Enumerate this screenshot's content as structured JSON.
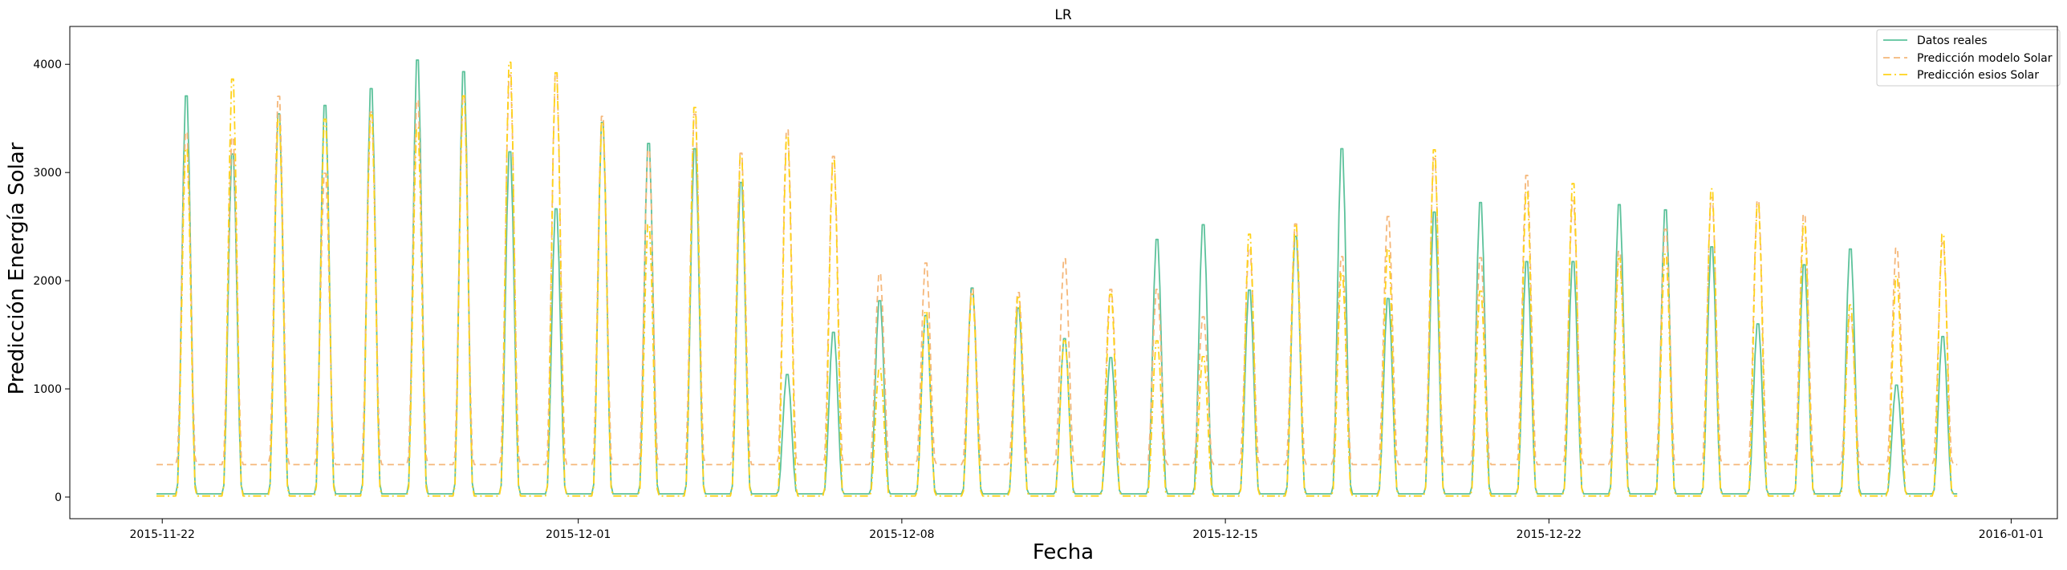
{
  "chart_data": {
    "type": "line",
    "title": "LR",
    "xlabel": "Fecha",
    "ylabel": "Predicción Energía Solar",
    "xlim": [
      "2015-11-20",
      "2016-01-02"
    ],
    "ylim": [
      -200,
      4350
    ],
    "x_tick_labels": [
      "2015-11-22",
      "2015-12-01",
      "2015-12-08",
      "2015-12-15",
      "2015-12-22",
      "2016-01-01"
    ],
    "y_tick_labels": [
      "0",
      "1000",
      "2000",
      "3000",
      "4000"
    ],
    "legend_position": "top-right",
    "grid": false,
    "series": [
      {
        "name": "Datos reales",
        "color": "#5cc29b",
        "style": "solid",
        "daily_peaks": [
          {
            "date": "2015-11-22",
            "peak": 3800
          },
          {
            "date": "2015-11-23",
            "peak": 3250
          },
          {
            "date": "2015-11-24",
            "peak": 3630
          },
          {
            "date": "2015-11-25",
            "peak": 3710
          },
          {
            "date": "2015-11-26",
            "peak": 3870
          },
          {
            "date": "2015-11-27",
            "peak": 4140
          },
          {
            "date": "2015-11-28",
            "peak": 4030
          },
          {
            "date": "2015-11-29",
            "peak": 3270
          },
          {
            "date": "2015-11-30",
            "peak": 2730
          },
          {
            "date": "2015-12-01",
            "peak": 3550
          },
          {
            "date": "2015-12-02",
            "peak": 3350
          },
          {
            "date": "2015-12-03",
            "peak": 3300
          },
          {
            "date": "2015-12-04",
            "peak": 2980
          },
          {
            "date": "2015-12-05",
            "peak": 1160
          },
          {
            "date": "2015-12-06",
            "peak": 1560
          },
          {
            "date": "2015-12-07",
            "peak": 1860
          },
          {
            "date": "2015-12-08",
            "peak": 1720
          },
          {
            "date": "2015-12-09",
            "peak": 1980
          },
          {
            "date": "2015-12-10",
            "peak": 1790
          },
          {
            "date": "2015-12-11",
            "peak": 1500
          },
          {
            "date": "2015-12-12",
            "peak": 1320
          },
          {
            "date": "2015-12-13",
            "peak": 2440
          },
          {
            "date": "2015-12-14",
            "peak": 2580
          },
          {
            "date": "2015-12-15",
            "peak": 1960
          },
          {
            "date": "2015-12-16",
            "peak": 2470
          },
          {
            "date": "2015-12-17",
            "peak": 3300
          },
          {
            "date": "2015-12-18",
            "peak": 1880
          },
          {
            "date": "2015-12-19",
            "peak": 2700
          },
          {
            "date": "2015-12-20",
            "peak": 2790
          },
          {
            "date": "2015-12-21",
            "peak": 2230
          },
          {
            "date": "2015-12-22",
            "peak": 2230
          },
          {
            "date": "2015-12-23",
            "peak": 2770
          },
          {
            "date": "2015-12-24",
            "peak": 2720
          },
          {
            "date": "2015-12-25",
            "peak": 2370
          },
          {
            "date": "2015-12-26",
            "peak": 1640
          },
          {
            "date": "2015-12-27",
            "peak": 2200
          },
          {
            "date": "2015-12-28",
            "peak": 2350
          },
          {
            "date": "2015-12-29",
            "peak": 1060
          },
          {
            "date": "2015-12-30",
            "peak": 1520
          }
        ],
        "night_level": 30
      },
      {
        "name": "Predicción modelo Solar",
        "color": "#f5b77a",
        "style": "dashed",
        "daily_peaks": [
          {
            "date": "2015-11-22",
            "peak": 3450
          },
          {
            "date": "2015-11-23",
            "peak": 3400
          },
          {
            "date": "2015-11-24",
            "peak": 3790
          },
          {
            "date": "2015-11-25",
            "peak": 3060
          },
          {
            "date": "2015-11-26",
            "peak": 3640
          },
          {
            "date": "2015-11-27",
            "peak": 3750
          },
          {
            "date": "2015-11-28",
            "peak": 3800
          },
          {
            "date": "2015-11-29",
            "peak": 3990
          },
          {
            "date": "2015-11-30",
            "peak": 4010
          },
          {
            "date": "2015-12-01",
            "peak": 3600
          },
          {
            "date": "2015-12-02",
            "peak": 3280
          },
          {
            "date": "2015-12-03",
            "peak": 3620
          },
          {
            "date": "2015-12-04",
            "peak": 3250
          },
          {
            "date": "2015-12-05",
            "peak": 3470
          },
          {
            "date": "2015-12-06",
            "peak": 3220
          },
          {
            "date": "2015-12-07",
            "peak": 2110
          },
          {
            "date": "2015-12-08",
            "peak": 2210
          },
          {
            "date": "2015-12-09",
            "peak": 1960
          },
          {
            "date": "2015-12-10",
            "peak": 1930
          },
          {
            "date": "2015-12-11",
            "peak": 2250
          },
          {
            "date": "2015-12-12",
            "peak": 1960
          },
          {
            "date": "2015-12-13",
            "peak": 1960
          },
          {
            "date": "2015-12-14",
            "peak": 1700
          },
          {
            "date": "2015-12-15",
            "peak": 2350
          },
          {
            "date": "2015-12-16",
            "peak": 2580
          },
          {
            "date": "2015-12-17",
            "peak": 2270
          },
          {
            "date": "2015-12-18",
            "peak": 2650
          },
          {
            "date": "2015-12-19",
            "peak": 3200
          },
          {
            "date": "2015-12-20",
            "peak": 2260
          },
          {
            "date": "2015-12-21",
            "peak": 3040
          },
          {
            "date": "2015-12-22",
            "peak": 2800
          },
          {
            "date": "2015-12-23",
            "peak": 2320
          },
          {
            "date": "2015-12-24",
            "peak": 2530
          },
          {
            "date": "2015-12-25",
            "peak": 2830
          },
          {
            "date": "2015-12-26",
            "peak": 2800
          },
          {
            "date": "2015-12-27",
            "peak": 2670
          },
          {
            "date": "2015-12-28",
            "peak": 1720
          },
          {
            "date": "2015-12-29",
            "peak": 2350
          },
          {
            "date": "2015-12-30",
            "peak": 2400
          }
        ],
        "night_level": 300
      },
      {
        "name": "Predicción esios Solar",
        "color": "#ffd21a",
        "style": "dashdot",
        "daily_peaks": [
          {
            "date": "2015-11-22",
            "peak": 3300
          },
          {
            "date": "2015-11-23",
            "peak": 3960
          },
          {
            "date": "2015-11-24",
            "peak": 3580
          },
          {
            "date": "2015-11-25",
            "peak": 3580
          },
          {
            "date": "2015-11-26",
            "peak": 3620
          },
          {
            "date": "2015-11-27",
            "peak": 3500
          },
          {
            "date": "2015-11-28",
            "peak": 3800
          },
          {
            "date": "2015-11-29",
            "peak": 4120
          },
          {
            "date": "2015-11-30",
            "peak": 4020
          },
          {
            "date": "2015-12-01",
            "peak": 3550
          },
          {
            "date": "2015-12-02",
            "peak": 2580
          },
          {
            "date": "2015-12-03",
            "peak": 3690
          },
          {
            "date": "2015-12-04",
            "peak": 3230
          },
          {
            "date": "2015-12-05",
            "peak": 3420
          },
          {
            "date": "2015-12-06",
            "peak": 3190
          },
          {
            "date": "2015-12-07",
            "peak": 1220
          },
          {
            "date": "2015-12-08",
            "peak": 1760
          },
          {
            "date": "2015-12-09",
            "peak": 1920
          },
          {
            "date": "2015-12-10",
            "peak": 1890
          },
          {
            "date": "2015-12-11",
            "peak": 1480
          },
          {
            "date": "2015-12-12",
            "peak": 1920
          },
          {
            "date": "2015-12-13",
            "peak": 1480
          },
          {
            "date": "2015-12-14",
            "peak": 1330
          },
          {
            "date": "2015-12-15",
            "peak": 2490
          },
          {
            "date": "2015-12-16",
            "peak": 2570
          },
          {
            "date": "2015-12-17",
            "peak": 2120
          },
          {
            "date": "2015-12-18",
            "peak": 2350
          },
          {
            "date": "2015-12-19",
            "peak": 3290
          },
          {
            "date": "2015-12-20",
            "peak": 1950
          },
          {
            "date": "2015-12-21",
            "peak": 2900
          },
          {
            "date": "2015-12-22",
            "peak": 2970
          },
          {
            "date": "2015-12-23",
            "peak": 2260
          },
          {
            "date": "2015-12-24",
            "peak": 2300
          },
          {
            "date": "2015-12-25",
            "peak": 2920
          },
          {
            "date": "2015-12-26",
            "peak": 2780
          },
          {
            "date": "2015-12-27",
            "peak": 2590
          },
          {
            "date": "2015-12-28",
            "peak": 1820
          },
          {
            "date": "2015-12-29",
            "peak": 2090
          },
          {
            "date": "2015-12-30",
            "peak": 2490
          }
        ],
        "night_level": 10
      }
    ]
  }
}
